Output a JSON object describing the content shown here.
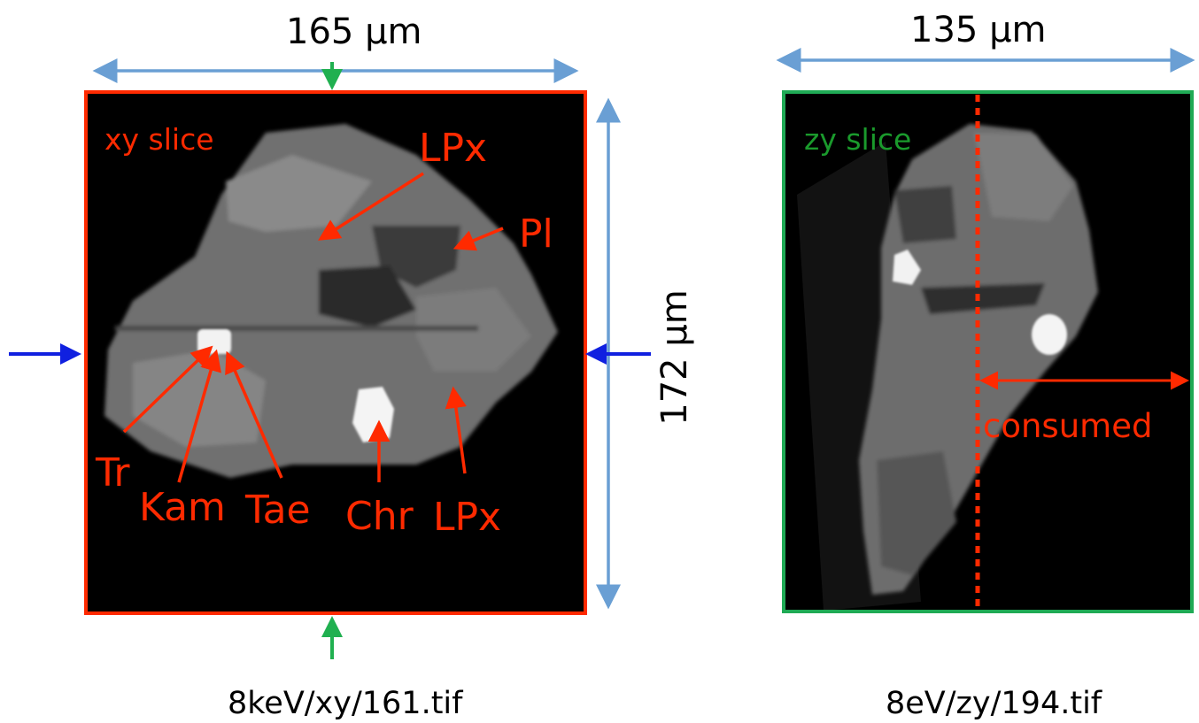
{
  "left_panel": {
    "width_label": "165 µm",
    "height_label": "172 µm",
    "slice_label": "xy slice",
    "minerals": {
      "lpx_top": "LPx",
      "pl": "Pl",
      "tr": "Tr",
      "kam": "Kam",
      "tae": "Tae",
      "chr": "Chr",
      "lpx_bottom": "LPx"
    },
    "caption": "8keV/xy/161.tif",
    "frame_color": "#ff2a00"
  },
  "right_panel": {
    "width_label": "135 µm",
    "slice_label": "zy slice",
    "consumed_label": "consumed",
    "caption": "8eV/zy/194.tif",
    "frame_color": "#1faa55"
  },
  "colors": {
    "dimension_arrow": "#6a9fd4",
    "annotation": "#ff2a00",
    "section_marker_blue": "#1020e0",
    "section_marker_green": "#20b050"
  }
}
